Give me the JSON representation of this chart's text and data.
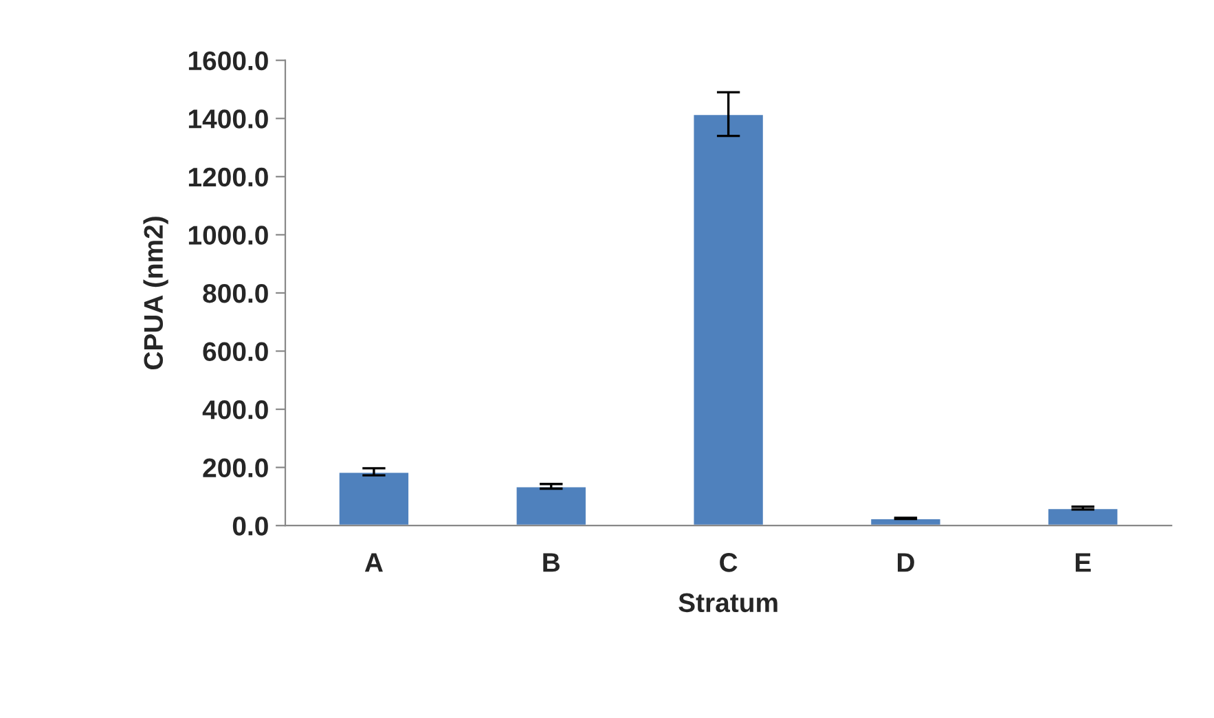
{
  "chart_data": {
    "type": "bar",
    "xlabel": "Stratum",
    "ylabel": "CPUA (nm2)",
    "categories": [
      "A",
      "B",
      "C",
      "D",
      "E"
    ],
    "values": [
      185,
      135,
      1415,
      25,
      60
    ],
    "errors": [
      12,
      8,
      75,
      2,
      5
    ],
    "color": "#4f81bd",
    "ylim": [
      0,
      1600
    ],
    "yticks": [
      {
        "value": 0,
        "label": "0.0"
      },
      {
        "value": 200,
        "label": "200.0"
      },
      {
        "value": 400,
        "label": "400.0"
      },
      {
        "value": 600,
        "label": "600.0"
      },
      {
        "value": 800,
        "label": "800.0"
      },
      {
        "value": 1000,
        "label": "1000.0"
      },
      {
        "value": 1200,
        "label": "1200.0"
      },
      {
        "value": 1400,
        "label": "1400.0"
      },
      {
        "value": 1600,
        "label": "1600.0"
      }
    ],
    "grid": false
  }
}
